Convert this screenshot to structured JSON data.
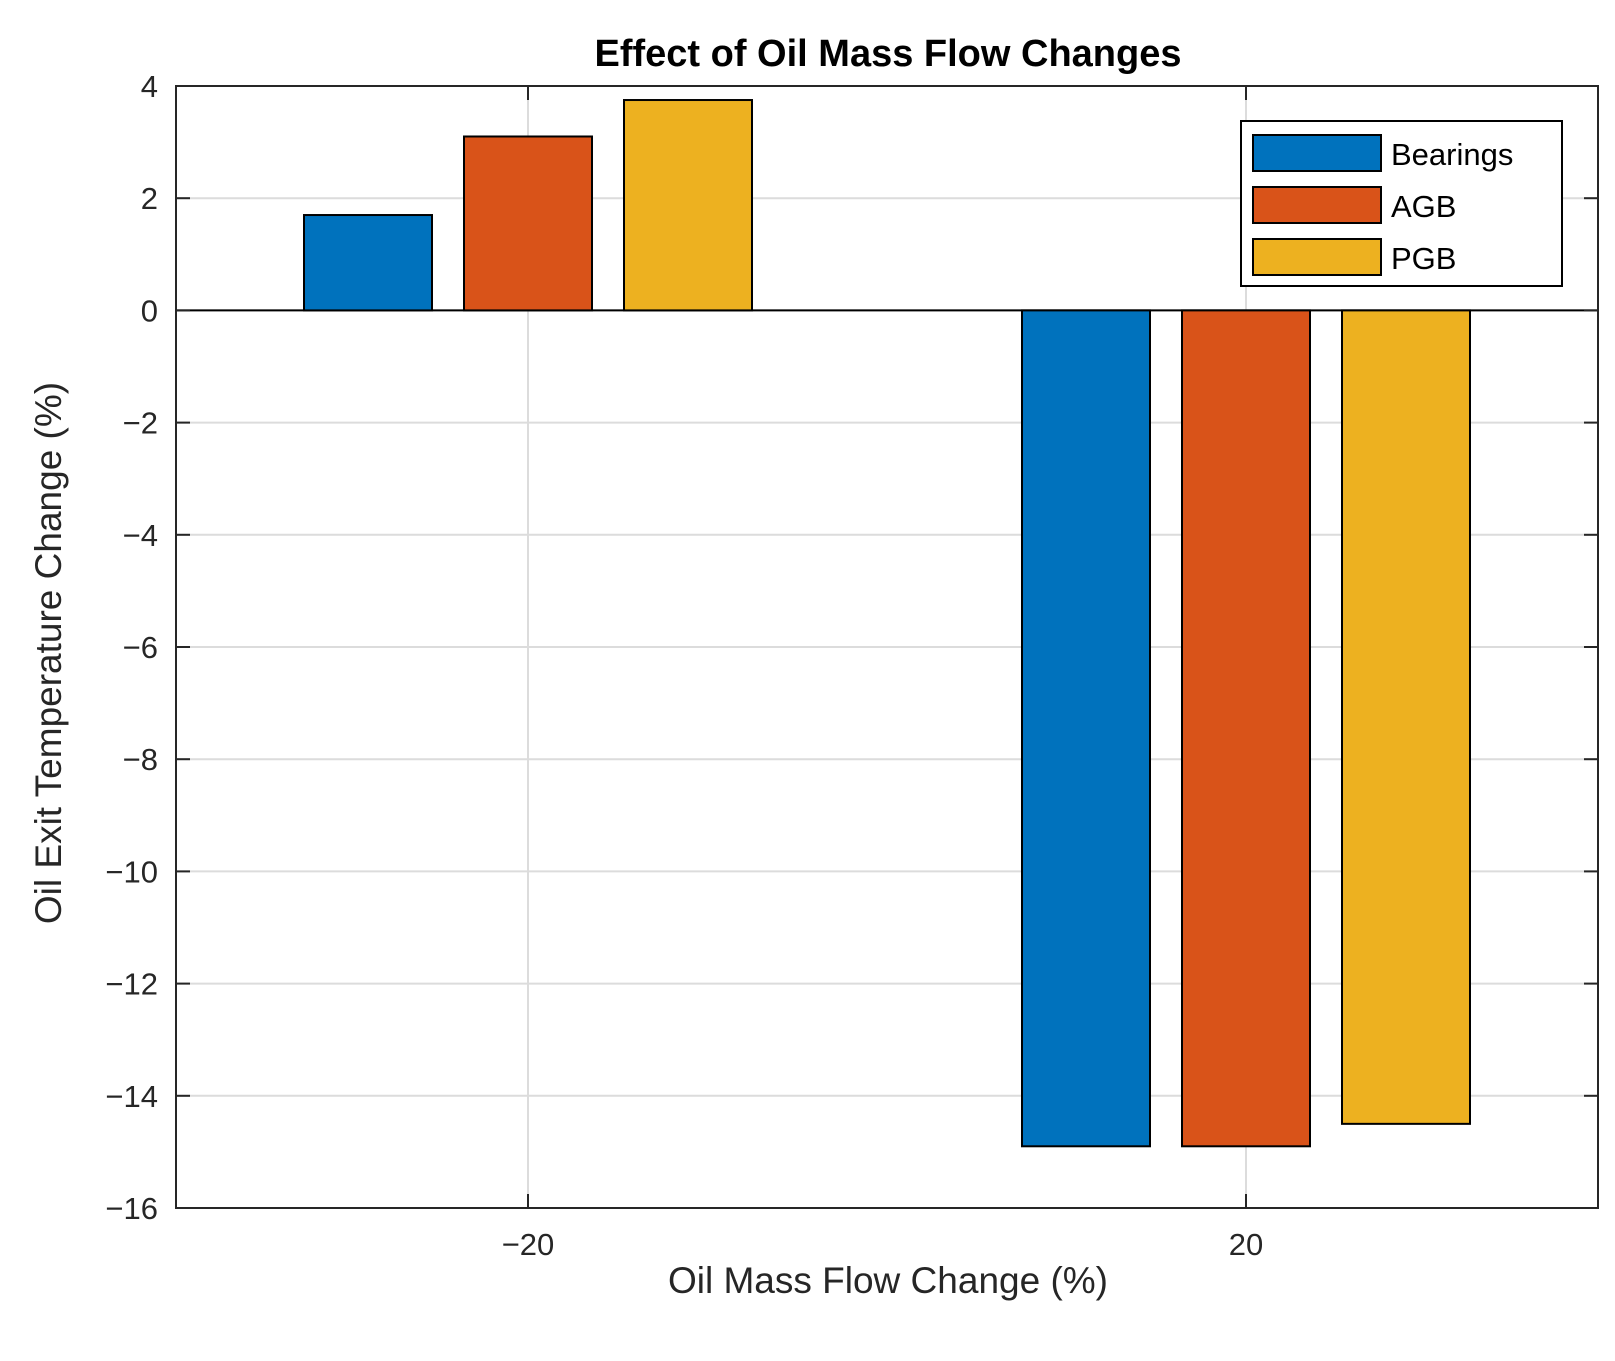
{
  "chart_data": {
    "type": "bar",
    "title": "Effect of Oil Mass Flow Changes",
    "xlabel": "Oil Mass Flow Change (%)",
    "ylabel": "Oil Exit Temperature Change (%)",
    "categories": [
      "−20",
      "20"
    ],
    "series": [
      {
        "name": "Bearings",
        "values": [
          1.7,
          -14.9
        ],
        "color": "#0072BD"
      },
      {
        "name": "AGB",
        "values": [
          3.1,
          -14.9
        ],
        "color": "#D95319"
      },
      {
        "name": "PGB",
        "values": [
          3.75,
          -14.5
        ],
        "color": "#EDB120"
      }
    ],
    "ylim": [
      -16,
      4
    ],
    "yticks": [
      4,
      2,
      0,
      -2,
      -4,
      -6,
      -8,
      -10,
      -12,
      -14,
      -16
    ],
    "ytick_labels": [
      "4",
      "2",
      "0",
      "−2",
      "−4",
      "−6",
      "−8",
      "−10",
      "−12",
      "−14",
      "−16"
    ],
    "grid": true,
    "legend_position": "top-right"
  }
}
